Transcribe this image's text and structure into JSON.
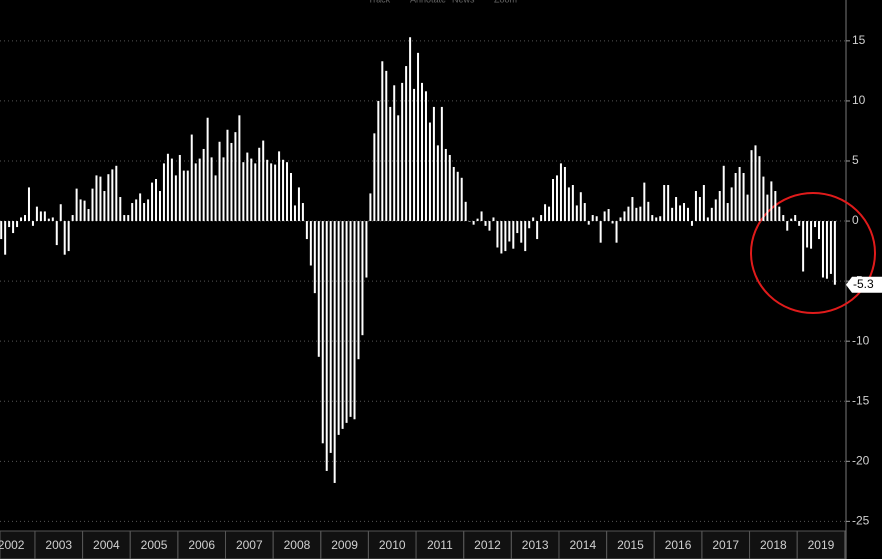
{
  "toolbar": [
    "Track",
    "Annotate",
    "News",
    "Zoom"
  ],
  "chart_data": {
    "type": "bar",
    "color": "#ffffff",
    "grid": true,
    "ylim": [
      -25.8,
      18.4
    ],
    "yticks": [
      -25,
      -20,
      -15,
      -10,
      -5,
      0,
      5,
      10,
      15
    ],
    "categories": [
      null,
      null,
      null,
      "2002",
      null,
      null,
      null,
      null,
      null,
      null,
      null,
      null,
      null,
      null,
      null,
      "2003",
      null,
      null,
      null,
      null,
      null,
      null,
      null,
      null,
      null,
      null,
      null,
      "2004",
      null,
      null,
      null,
      null,
      null,
      null,
      null,
      null,
      null,
      null,
      null,
      "2005",
      null,
      null,
      null,
      null,
      null,
      null,
      null,
      null,
      null,
      null,
      null,
      "2006",
      null,
      null,
      null,
      null,
      null,
      null,
      null,
      null,
      null,
      null,
      null,
      "2007",
      null,
      null,
      null,
      null,
      null,
      null,
      null,
      null,
      null,
      null,
      null,
      "2008",
      null,
      null,
      null,
      null,
      null,
      null,
      null,
      null,
      null,
      null,
      null,
      "2009",
      null,
      null,
      null,
      null,
      null,
      null,
      null,
      null,
      null,
      null,
      null,
      "2010",
      null,
      null,
      null,
      null,
      null,
      null,
      null,
      null,
      null,
      null,
      null,
      "2011",
      null,
      null,
      null,
      null,
      null,
      null,
      null,
      null,
      null,
      null,
      null,
      "2012",
      null,
      null,
      null,
      null,
      null,
      null,
      null,
      null,
      null,
      null,
      null,
      "2013",
      null,
      null,
      null,
      null,
      null,
      null,
      null,
      null,
      null,
      null,
      null,
      "2014",
      null,
      null,
      null,
      null,
      null,
      null,
      null,
      null,
      null,
      null,
      null,
      "2015",
      null,
      null,
      null,
      null,
      null,
      null,
      null,
      null,
      null,
      null,
      null,
      "2016",
      null,
      null,
      null,
      null,
      null,
      null,
      null,
      null,
      null,
      null,
      null,
      "2017",
      null,
      null,
      null,
      null,
      null,
      null,
      null,
      null,
      null,
      null,
      null,
      "2018",
      null,
      null,
      null,
      null,
      null,
      null,
      null,
      null,
      null,
      null,
      null,
      "2019",
      null,
      null,
      null
    ],
    "values": [
      -1.5,
      -2.8,
      -0.5,
      -1,
      -0.5,
      0.3,
      0.5,
      2.8,
      -0.4,
      1.2,
      0.8,
      0.8,
      0.2,
      0.3,
      -2,
      1.4,
      -2.8,
      -2.5,
      0.5,
      2.7,
      1.8,
      1.7,
      1.0,
      2.7,
      3.8,
      3.7,
      2.5,
      3.9,
      4.3,
      4.6,
      2.0,
      0.5,
      0.5,
      1.5,
      1.8,
      2.3,
      1.5,
      1.8,
      3.2,
      3.5,
      2.5,
      4.8,
      5.6,
      5.2,
      3.8,
      5.5,
      4.2,
      4.2,
      7.2,
      4.8,
      5.2,
      6.0,
      8.6,
      5.3,
      3.8,
      6.6,
      5.3,
      7.6,
      6.5,
      7.4,
      8.8,
      4.9,
      5.7,
      5.2,
      4.8,
      6.1,
      6.7,
      5.1,
      4.8,
      4.7,
      5.8,
      5.1,
      4.9,
      4.0,
      1.3,
      2.8,
      1.5,
      -1.5,
      -3.7,
      -6,
      -11.3,
      -18.5,
      -20.8,
      -19.3,
      -21.8,
      -17.8,
      -17.3,
      -16.8,
      -16.3,
      -16.5,
      -11.5,
      -9.5,
      -4.7,
      2.3,
      7.3,
      10.0,
      13.3,
      12.5,
      9.5,
      11.3,
      8.8,
      11.5,
      12.9,
      15.3,
      11.0,
      14.0,
      11.5,
      10.8,
      8.2,
      9.5,
      6.3,
      9.5,
      6.0,
      5.5,
      4.5,
      4.1,
      3.6,
      1.6,
      0.0,
      -0.3,
      0.2,
      0.8,
      -0.4,
      -0.8,
      0.3,
      -2.2,
      -2.7,
      -2.5,
      -1.7,
      -2.3,
      -1.0,
      -1.8,
      -2.5,
      -0.6,
      0.3,
      -1.5,
      0.5,
      1.4,
      1.2,
      3.5,
      3.8,
      4.8,
      4.5,
      2.8,
      3.0,
      1.3,
      2.4,
      1.5,
      -0.3,
      0.5,
      0.4,
      -1.8,
      0.8,
      1.0,
      -0.2,
      -1.8,
      0.3,
      0.8,
      1.2,
      2.0,
      1.1,
      1.2,
      3.2,
      1.6,
      0.5,
      0.3,
      0.4,
      3.0,
      3.0,
      1.1,
      2.0,
      1.3,
      1.5,
      1.1,
      -0.4,
      2.5,
      2.0,
      3.0,
      0.3,
      1.1,
      1.8,
      2.5,
      4.6,
      1.5,
      2.8,
      4.0,
      4.5,
      4.0,
      2.2,
      5.9,
      6.3,
      5.4,
      3.7,
      2.2,
      3.3,
      2.5,
      1.2,
      0.5,
      -0.8,
      0.2,
      0.5,
      -0.4,
      -4.2,
      -2.2,
      -2.3,
      -0.5,
      -1.5,
      -4.7,
      -4.8,
      -4.4,
      -5.3
    ]
  }
}
